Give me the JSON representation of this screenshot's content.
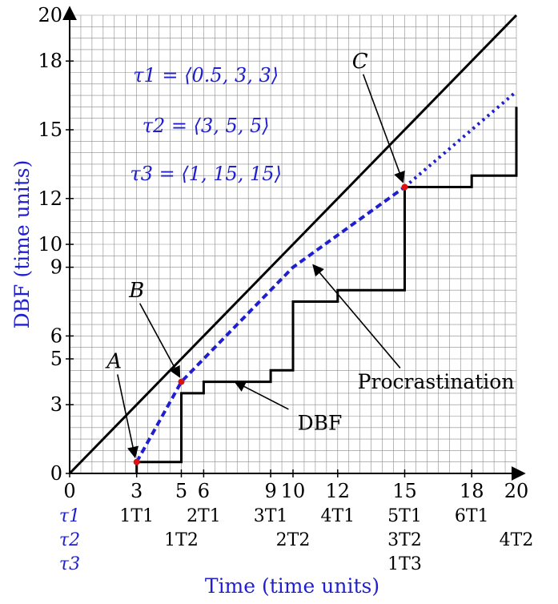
{
  "chart_data": {
    "type": "line",
    "xlabel": "Time (time units)",
    "ylabel": "DBF (time units)",
    "xlim": [
      0,
      20
    ],
    "ylim": [
      0,
      20
    ],
    "x_ticks": [
      0,
      3,
      5,
      6,
      9,
      10,
      12,
      15,
      18,
      20
    ],
    "y_ticks": [
      0,
      3,
      5,
      6,
      9,
      10,
      12,
      15,
      18,
      20
    ],
    "grid": true,
    "grid_step": 0.5,
    "parameters": [
      {
        "name": "τ1",
        "text": "τ1 = ⟨0.5, 3, 3⟩"
      },
      {
        "name": "τ2",
        "text": "τ2 = ⟨3, 5, 5⟩"
      },
      {
        "name": "τ3",
        "text": "τ3 = ⟨1, 15, 15⟩"
      }
    ],
    "series": [
      {
        "name": "DBF",
        "style": "step",
        "color": "#000000",
        "points": [
          [
            3,
            0
          ],
          [
            3,
            0.5
          ],
          [
            5,
            0.5
          ],
          [
            5,
            3.5
          ],
          [
            5.5,
            3.5
          ],
          [
            5.5,
            3.5
          ],
          [
            6,
            3.5
          ],
          [
            6,
            4
          ],
          [
            9,
            4
          ],
          [
            9,
            4.5
          ],
          [
            10,
            4.5
          ],
          [
            10,
            7.5
          ],
          [
            12,
            7.5
          ],
          [
            12,
            8
          ],
          [
            15,
            8
          ],
          [
            15,
            12.5
          ],
          [
            18,
            12.5
          ],
          [
            18,
            13
          ],
          [
            20,
            13
          ],
          [
            20,
            16
          ]
        ]
      },
      {
        "name": "Procrastination",
        "style": "dashed",
        "color": "#1f1fd0",
        "points": [
          [
            3,
            0.5
          ],
          [
            5,
            4
          ],
          [
            10,
            9
          ],
          [
            15,
            12.5
          ]
        ]
      },
      {
        "name": "Procrastination extension",
        "style": "dotted",
        "color": "#1f1fd0",
        "points": [
          [
            15,
            12.5
          ],
          [
            20,
            16.67
          ]
        ]
      },
      {
        "name": "Identity",
        "style": "solid",
        "color": "#000000",
        "points": [
          [
            0,
            0
          ],
          [
            20,
            20
          ]
        ]
      }
    ],
    "highlight_points": [
      {
        "label": "A",
        "x": 3,
        "y": 0.5
      },
      {
        "label": "B",
        "x": 5,
        "y": 4
      },
      {
        "label": "C",
        "x": 15,
        "y": 12.5
      }
    ],
    "annotations": [
      {
        "text": "Procrastination",
        "target_x": 10.9,
        "target_y": 9.1
      },
      {
        "text": "DBF",
        "target_x": 7.4,
        "target_y": 4
      }
    ],
    "period_rows": [
      {
        "task": "τ1",
        "marks": [
          {
            "x": 3,
            "text": "1T1"
          },
          {
            "x": 6,
            "text": "2T1"
          },
          {
            "x": 9,
            "text": "3T1"
          },
          {
            "x": 12,
            "text": "4T1"
          },
          {
            "x": 15,
            "text": "5T1"
          },
          {
            "x": 18,
            "text": "6T1"
          }
        ]
      },
      {
        "task": "τ2",
        "marks": [
          {
            "x": 5,
            "text": "1T2"
          },
          {
            "x": 10,
            "text": "2T2"
          },
          {
            "x": 15,
            "text": "3T2"
          },
          {
            "x": 20,
            "text": "4T2"
          }
        ]
      },
      {
        "task": "τ3",
        "marks": [
          {
            "x": 15,
            "text": "1T3"
          }
        ]
      }
    ]
  }
}
